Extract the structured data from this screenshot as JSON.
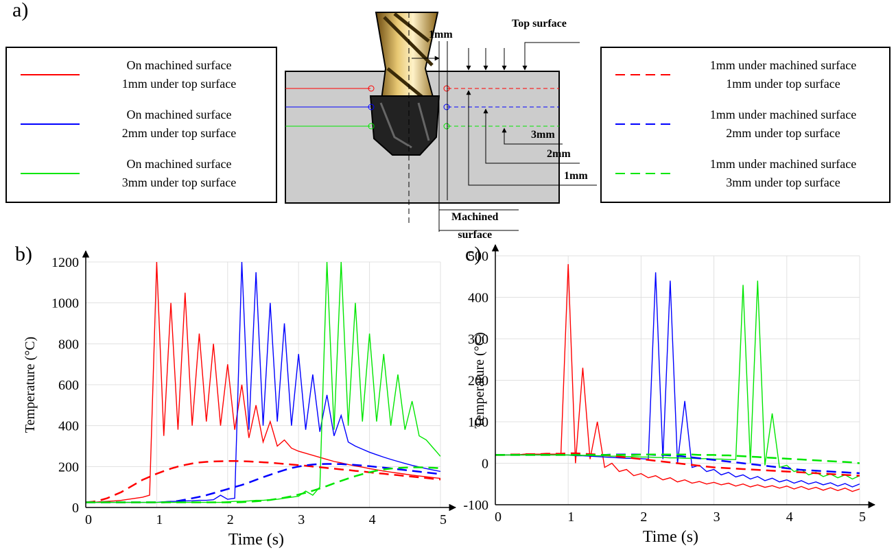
{
  "panel_labels": [
    "a)",
    "b)",
    "c)"
  ],
  "diagram": {
    "drill_offset": "1mm",
    "top_surface": "Top surface",
    "depth_3": "3mm",
    "depth_2": "2mm",
    "depth_1": "1mm",
    "machined_surface": "Machined\nsurface"
  },
  "chart_data": [
    {
      "type": "line",
      "xlabel": "Time (s)",
      "ylabel": "Temperature (°C)",
      "xlim": [
        0,
        5
      ],
      "xticks": [
        0,
        1,
        2,
        3,
        4,
        5
      ],
      "ylim": [
        0,
        1200
      ],
      "yticks": [
        0,
        200,
        400,
        600,
        800,
        1000,
        1200
      ],
      "grid": true,
      "x": [
        0,
        0.1,
        0.2,
        0.3,
        0.4,
        0.5,
        0.6,
        0.7,
        0.8,
        0.9,
        1,
        1.1,
        1.2,
        1.3,
        1.4,
        1.5,
        1.6,
        1.7,
        1.8,
        1.9,
        2,
        2.1,
        2.2,
        2.3,
        2.4,
        2.5,
        2.6,
        2.7,
        2.8,
        2.9,
        3,
        3.1,
        3.2,
        3.3,
        3.4,
        3.5,
        3.6,
        3.7,
        3.8,
        3.9,
        4,
        4.1,
        4.2,
        4.3,
        4.4,
        4.5,
        4.6,
        4.7,
        4.8,
        4.9,
        5
      ],
      "series": [
        {
          "name": "On machined surface\n1mm under top surface",
          "color": "#ff0000",
          "dashed": false,
          "values": [
            25,
            25,
            28,
            30,
            32,
            35,
            40,
            45,
            50,
            60,
            1200,
            350,
            1000,
            380,
            1050,
            400,
            850,
            420,
            800,
            400,
            700,
            380,
            600,
            340,
            500,
            320,
            420,
            300,
            330,
            290,
            275,
            265,
            255,
            245,
            235,
            225,
            218,
            210,
            203,
            197,
            190,
            184,
            178,
            173,
            168,
            163,
            158,
            154,
            150,
            146,
            142
          ]
        },
        {
          "name": "On machined surface\n2mm under top surface",
          "color": "#0000ff",
          "dashed": false,
          "values": [
            25,
            25,
            25,
            25,
            25,
            25,
            25,
            25,
            25,
            25,
            25,
            28,
            30,
            30,
            32,
            33,
            35,
            35,
            38,
            60,
            40,
            45,
            1200,
            380,
            1150,
            400,
            1000,
            420,
            900,
            400,
            750,
            380,
            650,
            370,
            550,
            350,
            450,
            320,
            300,
            285,
            270,
            258,
            246,
            235,
            225,
            215,
            206,
            198,
            190,
            183,
            176
          ]
        },
        {
          "name": "On machined surface\n3mm under top surface",
          "color": "#00e600",
          "dashed": false,
          "values": [
            25,
            25,
            25,
            25,
            25,
            25,
            25,
            25,
            25,
            25,
            25,
            25,
            25,
            25,
            25,
            25,
            25,
            25,
            25,
            25,
            28,
            30,
            30,
            32,
            35,
            35,
            38,
            40,
            45,
            50,
            55,
            80,
            60,
            100,
            1200,
            380,
            1200,
            400,
            1000,
            420,
            850,
            420,
            750,
            400,
            650,
            380,
            520,
            350,
            330,
            290,
            250
          ]
        },
        {
          "name": "1mm under machined surface\n1mm under top surface",
          "color": "#ff0000",
          "dashed": true,
          "values": [
            25,
            28,
            35,
            45,
            60,
            75,
            95,
            115,
            135,
            150,
            165,
            178,
            190,
            200,
            208,
            215,
            220,
            223,
            225,
            226,
            227,
            227,
            226,
            225,
            223,
            221,
            219,
            216,
            213,
            210,
            207,
            204,
            200,
            197,
            193,
            190,
            186,
            183,
            179,
            176,
            172,
            168,
            165,
            161,
            158,
            154,
            151,
            147,
            144,
            140,
            137
          ]
        },
        {
          "name": "1mm under machined surface\n2mm under top surface",
          "color": "#0000ff",
          "dashed": true,
          "values": [
            25,
            25,
            25,
            25,
            25,
            25,
            25,
            25,
            25,
            25,
            25,
            25,
            28,
            32,
            38,
            45,
            52,
            60,
            70,
            80,
            90,
            100,
            110,
            122,
            135,
            148,
            160,
            172,
            183,
            193,
            200,
            206,
            210,
            212,
            213,
            213,
            212,
            210,
            208,
            205,
            202,
            198,
            195,
            191,
            187,
            183,
            179,
            175,
            171,
            167,
            163
          ]
        },
        {
          "name": "1mm under machined surface\n3mm under top surface",
          "color": "#00e600",
          "dashed": true,
          "values": [
            25,
            25,
            25,
            25,
            25,
            25,
            25,
            25,
            25,
            25,
            25,
            25,
            25,
            25,
            25,
            25,
            25,
            25,
            25,
            25,
            25,
            25,
            26,
            28,
            30,
            33,
            37,
            42,
            48,
            55,
            63,
            72,
            82,
            93,
            105,
            118,
            130,
            142,
            153,
            163,
            172,
            180,
            186,
            190,
            193,
            195,
            196,
            196,
            195,
            194,
            192
          ]
        }
      ]
    },
    {
      "type": "line",
      "xlabel": "Time (s)",
      "ylabel": "Temperature (°C)",
      "xlim": [
        0,
        5
      ],
      "xticks": [
        0,
        1,
        2,
        3,
        4,
        5
      ],
      "ylim": [
        -100,
        500
      ],
      "yticks": [
        -100,
        0,
        100,
        200,
        300,
        400,
        500
      ],
      "grid": true,
      "x": [
        0,
        0.1,
        0.2,
        0.3,
        0.4,
        0.5,
        0.6,
        0.7,
        0.8,
        0.9,
        1,
        1.1,
        1.2,
        1.3,
        1.4,
        1.5,
        1.6,
        1.7,
        1.8,
        1.9,
        2,
        2.1,
        2.2,
        2.3,
        2.4,
        2.5,
        2.6,
        2.7,
        2.8,
        2.9,
        3,
        3.1,
        3.2,
        3.3,
        3.4,
        3.5,
        3.6,
        3.7,
        3.8,
        3.9,
        4,
        4.1,
        4.2,
        4.3,
        4.4,
        4.5,
        4.6,
        4.7,
        4.8,
        4.9,
        5
      ],
      "series": [
        {
          "color": "#ff0000",
          "dashed": false,
          "values": [
            20,
            20,
            20,
            20,
            22,
            22,
            22,
            22,
            22,
            22,
            480,
            0,
            230,
            10,
            100,
            -10,
            0,
            -20,
            -15,
            -30,
            -25,
            -35,
            -30,
            -40,
            -35,
            -45,
            -40,
            -48,
            -44,
            -50,
            -46,
            -52,
            -48,
            -55,
            -50,
            -57,
            -52,
            -58,
            -54,
            -60,
            -55,
            -62,
            -56,
            -63,
            -58,
            -65,
            -59,
            -66,
            -60,
            -68,
            -62
          ]
        },
        {
          "color": "#0000ff",
          "dashed": false,
          "values": [
            20,
            20,
            20,
            20,
            20,
            20,
            20,
            20,
            20,
            20,
            20,
            18,
            18,
            17,
            16,
            15,
            14,
            13,
            12,
            12,
            11,
            10,
            460,
            10,
            440,
            0,
            150,
            -10,
            -5,
            -20,
            -15,
            -28,
            -22,
            -33,
            -28,
            -38,
            -32,
            -42,
            -36,
            -45,
            -40,
            -48,
            -42,
            -50,
            -45,
            -52,
            -47,
            -55,
            -49,
            -57,
            -50
          ]
        },
        {
          "color": "#00e600",
          "dashed": false,
          "values": [
            20,
            20,
            20,
            20,
            20,
            20,
            20,
            20,
            20,
            20,
            20,
            20,
            19,
            19,
            18,
            18,
            17,
            17,
            16,
            16,
            15,
            15,
            14,
            14,
            13,
            13,
            12,
            12,
            11,
            11,
            10,
            10,
            9,
            9,
            430,
            0,
            440,
            -5,
            120,
            -10,
            -5,
            -20,
            -15,
            -28,
            -22,
            -32,
            -26,
            -35,
            -28,
            -38,
            -30
          ]
        },
        {
          "color": "#ff0000",
          "dashed": true,
          "values": [
            20,
            20,
            21,
            21,
            22,
            22,
            22,
            23,
            23,
            23,
            24,
            24,
            23,
            22,
            21,
            20,
            18,
            16,
            14,
            12,
            10,
            8,
            6,
            4,
            2,
            0,
            -2,
            -4,
            -6,
            -8,
            -10,
            -11,
            -12,
            -13,
            -14,
            -15,
            -16,
            -17,
            -18,
            -19,
            -20,
            -21,
            -22,
            -23,
            -24,
            -25,
            -26,
            -27,
            -28,
            -29,
            -30
          ]
        },
        {
          "color": "#0000ff",
          "dashed": true,
          "values": [
            20,
            20,
            20,
            20,
            20,
            20,
            20,
            20,
            20,
            20,
            20,
            20,
            20,
            20,
            20,
            20,
            21,
            21,
            21,
            21,
            21,
            21,
            20,
            20,
            19,
            18,
            16,
            14,
            12,
            10,
            8,
            6,
            4,
            2,
            0,
            -2,
            -4,
            -6,
            -8,
            -10,
            -12,
            -14,
            -16,
            -17,
            -18,
            -19,
            -20,
            -21,
            -22,
            -23,
            -24
          ]
        },
        {
          "color": "#00e600",
          "dashed": true,
          "values": [
            20,
            20,
            20,
            20,
            20,
            20,
            20,
            20,
            20,
            20,
            20,
            20,
            20,
            20,
            20,
            20,
            20,
            20,
            20,
            20,
            21,
            21,
            21,
            21,
            21,
            21,
            21,
            21,
            20,
            20,
            20,
            19,
            19,
            18,
            17,
            16,
            15,
            14,
            13,
            12,
            11,
            10,
            9,
            8,
            7,
            6,
            5,
            4,
            3,
            2,
            0
          ]
        }
      ]
    }
  ]
}
